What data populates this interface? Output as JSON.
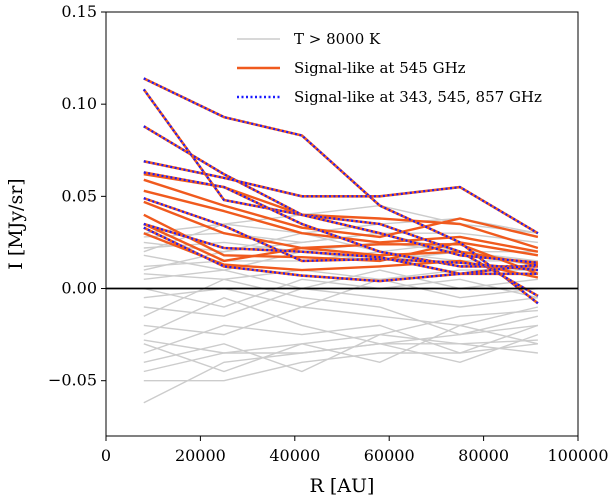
{
  "chart_data": {
    "type": "line",
    "xlabel": "R [AU]",
    "ylabel": "I [MJy/sr]",
    "xlim": [
      0,
      100000
    ],
    "ylim": [
      -0.08,
      0.15
    ],
    "xticks": [
      0,
      20000,
      40000,
      60000,
      80000,
      100000
    ],
    "yticks": [
      -0.05,
      0.0,
      0.05,
      0.1,
      0.15
    ],
    "xtick_labels": [
      "0",
      "20000",
      "40000",
      "60000",
      "80000",
      "100000"
    ],
    "ytick_labels": [
      "−0.05",
      "0.00",
      "0.05",
      "0.10",
      "0.15"
    ],
    "grid": false,
    "zero_line": true,
    "legend": {
      "position": "top-center",
      "entries": [
        {
          "label": "T > 8000 K",
          "style": "thin-gray"
        },
        {
          "label": "Signal-like at 545 GHz",
          "style": "orange"
        },
        {
          "label": "Signal-like at 343, 545, 857 GHz",
          "style": "blue-dotted"
        }
      ]
    },
    "colors": {
      "background_lines": "#cccccc",
      "signal_545": "#f05a1e",
      "signal_multi": "#1a1aff",
      "zero_line": "#000000"
    },
    "x": [
      8000,
      25000,
      41500,
      58000,
      75000,
      91500
    ],
    "series_gray": [
      [
        -0.062,
        -0.04,
        -0.035,
        -0.03,
        -0.03,
        -0.028
      ],
      [
        -0.05,
        -0.05,
        -0.04,
        -0.035,
        -0.035,
        -0.03
      ],
      [
        -0.045,
        -0.035,
        -0.035,
        -0.03,
        -0.04,
        -0.025
      ],
      [
        -0.035,
        -0.02,
        -0.025,
        -0.02,
        -0.035,
        -0.02
      ],
      [
        -0.03,
        -0.045,
        -0.03,
        -0.025,
        -0.015,
        -0.012
      ],
      [
        -0.025,
        -0.005,
        -0.02,
        -0.03,
        -0.025,
        -0.02
      ],
      [
        -0.02,
        -0.025,
        -0.01,
        -0.015,
        -0.02,
        -0.01
      ],
      [
        -0.015,
        0.005,
        -0.005,
        -0.01,
        -0.025,
        -0.015
      ],
      [
        -0.01,
        -0.015,
        0.0,
        -0.005,
        -0.01,
        -0.005
      ],
      [
        -0.005,
        0.0,
        -0.01,
        0.005,
        -0.005,
        0.0
      ],
      [
        0.0,
        -0.01,
        0.005,
        0.0,
        0.005,
        -0.005
      ],
      [
        0.005,
        0.01,
        0.0,
        0.01,
        0.0,
        0.005
      ],
      [
        0.008,
        0.005,
        0.01,
        0.005,
        0.01,
        0.01
      ],
      [
        0.012,
        0.015,
        0.015,
        0.02,
        0.015,
        0.015
      ],
      [
        0.018,
        0.01,
        0.02,
        0.015,
        0.02,
        0.012
      ],
      [
        0.022,
        0.025,
        0.02,
        0.025,
        0.02,
        0.02
      ],
      [
        0.025,
        0.02,
        0.03,
        0.02,
        0.025,
        0.018
      ],
      [
        0.028,
        0.03,
        0.025,
        0.03,
        0.03,
        0.025
      ],
      [
        0.03,
        0.035,
        0.03,
        0.035,
        0.038,
        0.03
      ],
      [
        0.02,
        0.035,
        0.04,
        0.045,
        0.035,
        0.03
      ],
      [
        -0.028,
        -0.035,
        -0.03,
        -0.04,
        -0.02,
        -0.03
      ],
      [
        -0.04,
        -0.03,
        -0.045,
        -0.025,
        -0.03,
        -0.035
      ],
      [
        0.01,
        0.02,
        0.025,
        0.03,
        0.02,
        0.015
      ]
    ],
    "series_orange": [
      [
        0.062,
        0.055,
        0.04,
        0.038,
        0.035,
        0.022
      ],
      [
        0.059,
        0.045,
        0.033,
        0.028,
        0.038,
        0.028
      ],
      [
        0.053,
        0.042,
        0.03,
        0.025,
        0.028,
        0.02
      ],
      [
        0.047,
        0.03,
        0.022,
        0.018,
        0.02,
        0.013
      ],
      [
        0.04,
        0.018,
        0.017,
        0.015,
        0.025,
        0.018
      ],
      [
        0.035,
        0.015,
        0.022,
        0.024,
        0.024,
        0.008
      ],
      [
        0.03,
        0.013,
        0.01,
        0.012,
        0.015,
        0.006
      ]
    ],
    "series_blue": [
      [
        0.114,
        0.093,
        0.083,
        0.045,
        0.025,
        -0.008
      ],
      [
        0.108,
        0.048,
        0.04,
        0.035,
        0.02,
        -0.004
      ],
      [
        0.088,
        0.062,
        0.04,
        0.03,
        0.018,
        0.014
      ],
      [
        0.069,
        0.06,
        0.05,
        0.05,
        0.055,
        0.03
      ],
      [
        0.063,
        0.055,
        0.035,
        0.02,
        0.012,
        0.012
      ],
      [
        0.049,
        0.034,
        0.015,
        0.016,
        0.014,
        0.01
      ],
      [
        0.035,
        0.022,
        0.02,
        0.017,
        0.008,
        0.008
      ],
      [
        0.033,
        0.012,
        0.007,
        0.004,
        0.008,
        0.013
      ]
    ]
  }
}
